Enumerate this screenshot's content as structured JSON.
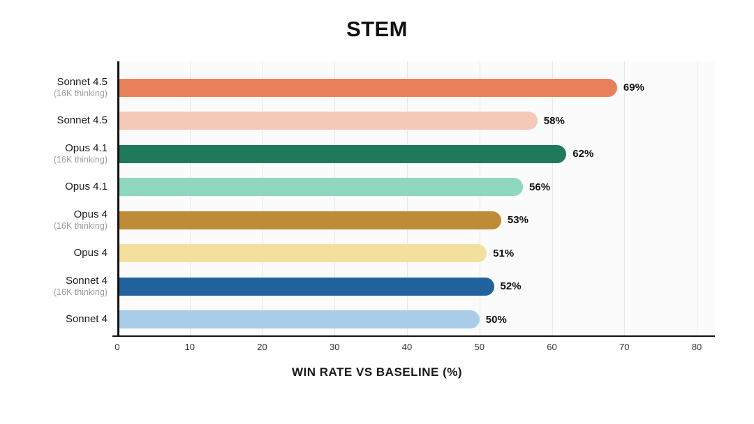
{
  "title": "STEM",
  "x_axis_title": "WIN RATE VS BASELINE (%)",
  "chart_data": {
    "type": "bar",
    "orientation": "horizontal",
    "title": "STEM",
    "xlabel": "WIN RATE VS BASELINE (%)",
    "xlim": [
      0,
      80
    ],
    "xticks": [
      0,
      10,
      20,
      30,
      40,
      50,
      60,
      70,
      80
    ],
    "axis_max_display": 82.5,
    "grid": true,
    "legend": "none",
    "value_suffix": "%",
    "bars": [
      {
        "label": "Sonnet 4.5",
        "sublabel": "(16K thinking)",
        "value": 69,
        "display": "69%",
        "color": "#E8815B"
      },
      {
        "label": "Sonnet 4.5",
        "sublabel": "",
        "value": 58,
        "display": "58%",
        "color": "#F5C9B8"
      },
      {
        "label": "Opus 4.1",
        "sublabel": "(16K thinking)",
        "value": 62,
        "display": "62%",
        "color": "#1E7A5B"
      },
      {
        "label": "Opus 4.1",
        "sublabel": "",
        "value": 56,
        "display": "56%",
        "color": "#8FD7BE"
      },
      {
        "label": "Opus 4",
        "sublabel": "(16K thinking)",
        "value": 53,
        "display": "53%",
        "color": "#BE8B36"
      },
      {
        "label": "Opus 4",
        "sublabel": "",
        "value": 51,
        "display": "51%",
        "color": "#F3DF9E"
      },
      {
        "label": "Sonnet 4",
        "sublabel": "(16K thinking)",
        "value": 52,
        "display": "52%",
        "color": "#20639D"
      },
      {
        "label": "Sonnet 4",
        "sublabel": "",
        "value": 50,
        "display": "50%",
        "color": "#A9CCE9"
      }
    ],
    "colors": {
      "axis": "#111111",
      "gridline": "#E9E9E9",
      "plot_background": "#FBFBFB",
      "label_text": "#1A1A1A",
      "sublabel_text": "#9B9B9B",
      "tick_text": "#333333",
      "value_text": "#111111"
    }
  }
}
